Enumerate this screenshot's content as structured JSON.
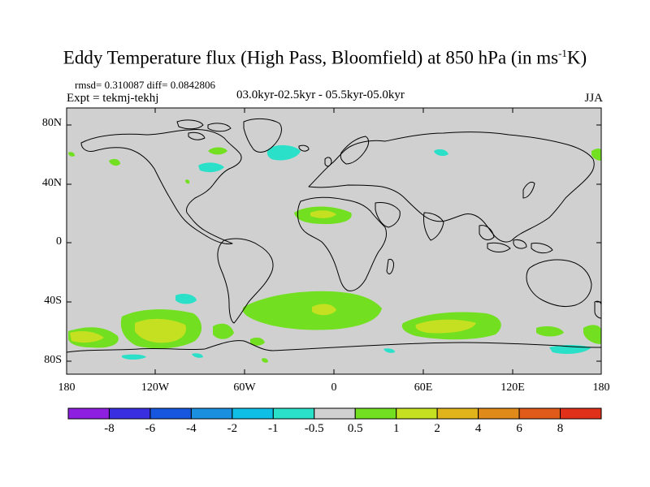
{
  "title": "Eddy Temperature flux (High Pass, Bloomfield) at 850 hPa (in ms",
  "title_sup": "-1",
  "title_tail": "K)",
  "stats": "rmsd= 0.310087 diff= 0.0842806",
  "experiment": "Expt = tekmj-tekhj",
  "period": "03.0kyr-02.5kyr - 05.5kyr-05.0kyr",
  "season": "JJA",
  "lat_labels": [
    "80N",
    "40N",
    "0",
    "40S",
    "80S"
  ],
  "lon_labels": [
    "180",
    "120W",
    "60W",
    "0",
    "60E",
    "120E",
    "180"
  ],
  "colorbar": {
    "labels": [
      "-8",
      "-6",
      "-4",
      "-2",
      "-1",
      "-0.5",
      "0.5",
      "1",
      "2",
      "4",
      "6",
      "8"
    ],
    "colors": [
      "#8f1fe0",
      "#3a2fe0",
      "#1757e0",
      "#1a8fe0",
      "#10bfe6",
      "#2ae0c8",
      "#d0d0d0",
      "#72e020",
      "#c4e020",
      "#e0b41a",
      "#e08a1a",
      "#e05a1a",
      "#e0301a"
    ]
  },
  "colors": {
    "background": "#d0d0d0",
    "coast": "#000000"
  }
}
